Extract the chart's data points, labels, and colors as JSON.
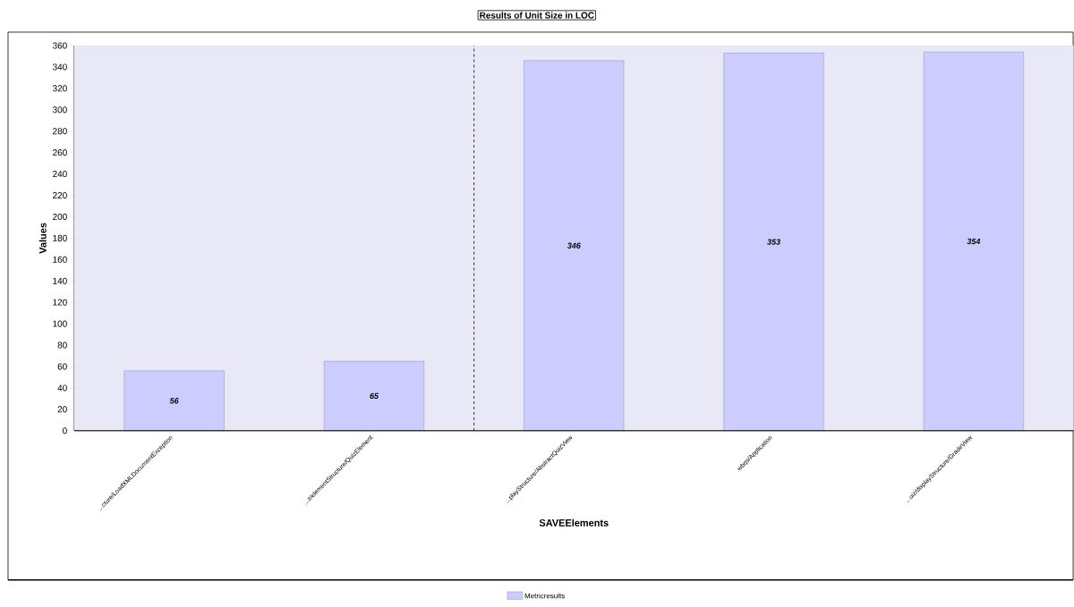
{
  "chart_data": {
    "type": "bar",
    "title": "Results of Unit Size in LOC",
    "xlabel": "SAVEElements",
    "ylabel": "Values",
    "categories": [
      "...cture/LoadXMLDocumentException",
      "...z/elementStructure/QuizElement",
      "...playStructure/AbstractQuizView",
      "wbqs/Application",
      "...uiz/displayStructure/GradeView"
    ],
    "series": [
      {
        "name": "Metricresults",
        "color": "#ccccff",
        "values": [
          56,
          65,
          346,
          353,
          354
        ]
      }
    ],
    "ylim": [
      0,
      360
    ],
    "yticks": [
      0,
      20,
      40,
      60,
      80,
      100,
      120,
      140,
      160,
      180,
      200,
      220,
      240,
      260,
      280,
      300,
      320,
      340,
      360
    ],
    "data_labels": true,
    "legend": "bottom",
    "grid": false
  }
}
